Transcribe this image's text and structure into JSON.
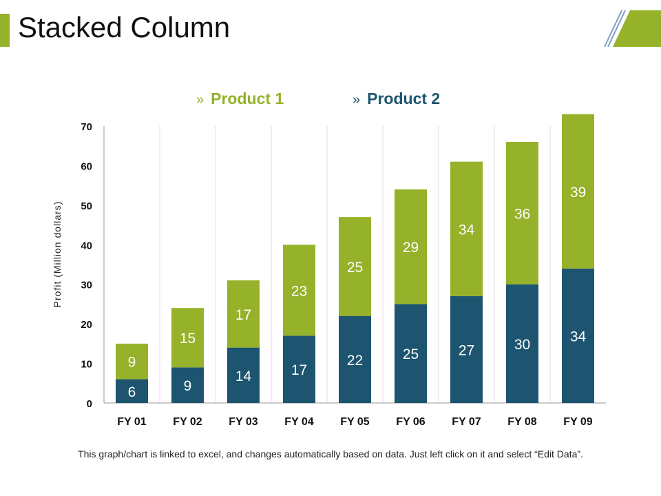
{
  "slide": {
    "title": "Stacked Column",
    "footnote": "This graph/chart is linked to excel, and changes automatically  based on data. Just left click on it and select “Edit Data”.",
    "accent_color": "#95B22A",
    "legend_marker": "»"
  },
  "chart_data": {
    "type": "bar",
    "stacked": true,
    "categories": [
      "FY 01",
      "FY 02",
      "FY 03",
      "FY 04",
      "FY 05",
      "FY 06",
      "FY 07",
      "FY 08",
      "FY 09"
    ],
    "series": [
      {
        "name": "Product 1",
        "color": "#95B22A",
        "values": [
          9,
          15,
          17,
          23,
          25,
          29,
          34,
          36,
          39
        ]
      },
      {
        "name": "Product 2",
        "color": "#1D5470",
        "values": [
          6,
          9,
          14,
          17,
          22,
          25,
          27,
          30,
          34
        ]
      }
    ],
    "stack_order": [
      "Product 2",
      "Product 1"
    ],
    "title": "",
    "xlabel": "",
    "ylabel": "Profit  (Million dollars)",
    "ylim": [
      0,
      70
    ],
    "yticks": [
      0,
      10,
      20,
      30,
      40,
      50,
      60,
      70
    ],
    "grid": "vertical",
    "legend_position": "top"
  }
}
